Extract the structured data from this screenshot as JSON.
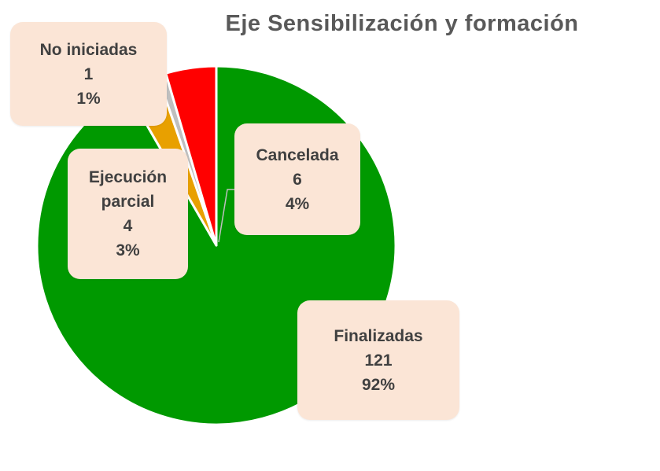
{
  "chart_data": {
    "type": "pie",
    "title": "Eje Sensibilización y formación",
    "categories": [
      "Finalizadas",
      "Ejecución parcial",
      "No iniciadas",
      "Cancelada"
    ],
    "values": [
      121,
      4,
      1,
      6
    ],
    "percent_labels": [
      "92%",
      "3%",
      "1%",
      "4%"
    ],
    "colors": [
      "#009900",
      "#e8a000",
      "#bfbfbf",
      "#ff0000"
    ],
    "labels": {
      "finalizadas": {
        "name": "Finalizadas",
        "value": "121",
        "percent": "92%"
      },
      "ejecucion": {
        "name_line1": "Ejecución",
        "name_line2": "parcial",
        "value": "4",
        "percent": "3%"
      },
      "no_iniciadas": {
        "name": "No iniciadas",
        "value": "1",
        "percent": "1%"
      },
      "cancelada": {
        "name": "Cancelada",
        "value": "6",
        "percent": "4%"
      }
    }
  }
}
